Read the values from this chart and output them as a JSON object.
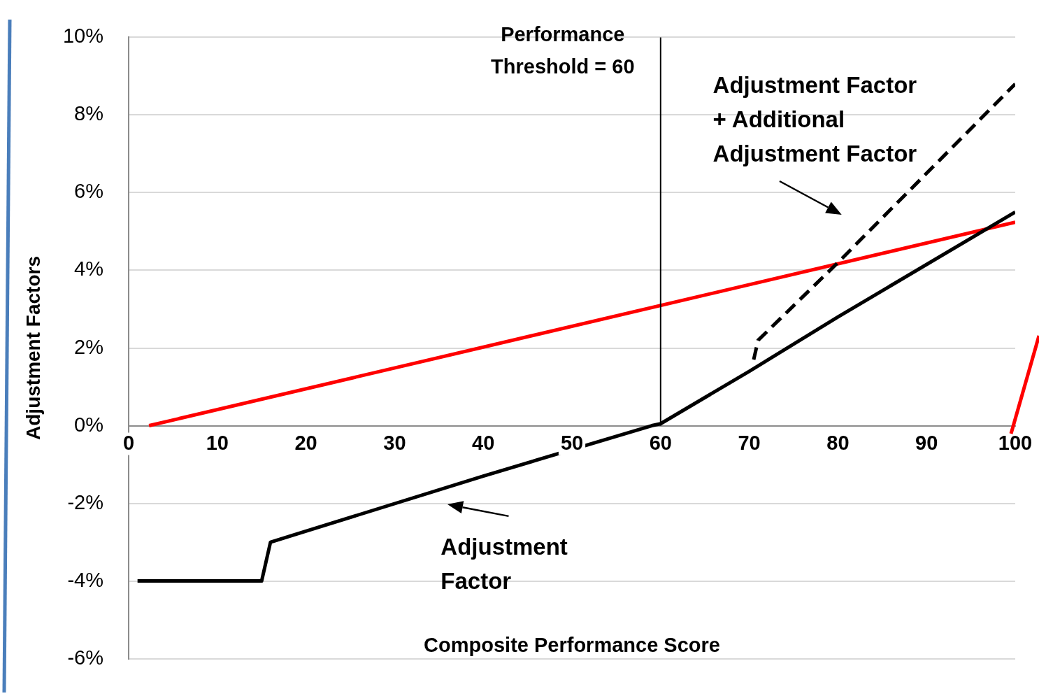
{
  "chart_data": {
    "type": "line",
    "xlabel": "Composite Performance Score",
    "ylabel": "Adjustment Factors",
    "xlim": [
      0,
      100
    ],
    "xticks": [
      0,
      10,
      20,
      30,
      40,
      50,
      60,
      70,
      80,
      90,
      100
    ],
    "ylim": [
      -6,
      10
    ],
    "yticks": [
      {
        "value": -6,
        "label": "-6%"
      },
      {
        "value": -4,
        "label": "-4%"
      },
      {
        "value": -2,
        "label": "-2%"
      },
      {
        "value": 0,
        "label": "0%"
      },
      {
        "value": 2,
        "label": "2%"
      },
      {
        "value": 4,
        "label": "4%"
      },
      {
        "value": 6,
        "label": "6%"
      },
      {
        "value": 8,
        "label": "8%"
      },
      {
        "value": 10,
        "label": "10%"
      }
    ],
    "grid": "y",
    "marker": "none",
    "series": [
      {
        "color": "#000000",
        "line_style": "solid",
        "x": [
          1,
          15,
          16,
          40,
          59,
          60,
          70,
          80,
          100
        ],
        "values": [
          -4,
          -4,
          -3,
          -1.3,
          0,
          0.05,
          1.4,
          2.8,
          5.5
        ]
      },
      {
        "color": "#000000",
        "line_style": "dashed",
        "x": [
          70.5,
          71,
          80,
          100
        ],
        "values": [
          1.7,
          2.2,
          4.2,
          8.8
        ]
      },
      {
        "color": "#ff0000",
        "line_style": "solid",
        "x": [
          2.3,
          100
        ],
        "values": [
          0,
          5.24
        ]
      }
    ],
    "ref_lines": [
      {
        "axis": "x",
        "value": 60,
        "label": "Performance\nThreshold = 60",
        "color": "#000000"
      }
    ],
    "annotations": [
      "Adjustment Factor\n+ Additional\nAdjustment Factor",
      "Adjustment\nFactor"
    ]
  }
}
